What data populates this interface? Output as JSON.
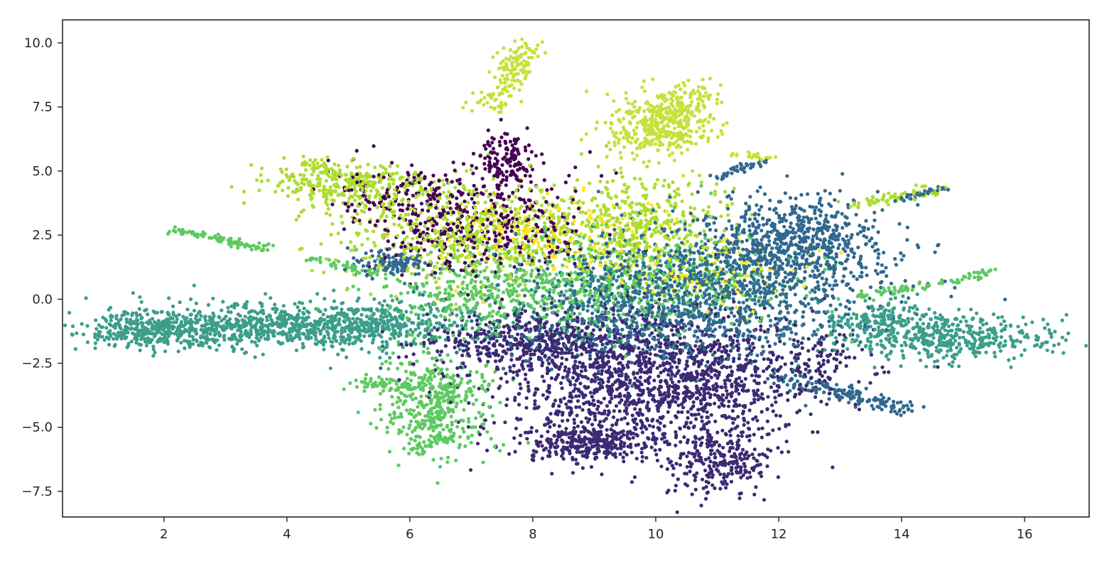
{
  "chart_data": {
    "type": "scatter",
    "title": "",
    "xlabel": "",
    "ylabel": "",
    "xlim": [
      0.35,
      17.05
    ],
    "ylim": [
      -8.5,
      10.9
    ],
    "xticks": [
      {
        "value": 2,
        "label": "2"
      },
      {
        "value": 4,
        "label": "4"
      },
      {
        "value": 6,
        "label": "6"
      },
      {
        "value": 8,
        "label": "8"
      },
      {
        "value": 10,
        "label": "10"
      },
      {
        "value": 12,
        "label": "12"
      },
      {
        "value": 14,
        "label": "14"
      },
      {
        "value": 16,
        "label": "16"
      }
    ],
    "yticks": [
      {
        "value": 10.0,
        "label": "10.0"
      },
      {
        "value": 7.5,
        "label": "7.5"
      },
      {
        "value": 5.0,
        "label": "5.0"
      },
      {
        "value": 2.5,
        "label": "2.5"
      },
      {
        "value": 0.0,
        "label": "0.0"
      },
      {
        "value": -2.5,
        "label": "−2.5"
      },
      {
        "value": -5.0,
        "label": "−5.0"
      },
      {
        "value": -7.5,
        "label": "−7.5"
      }
    ],
    "grid": false,
    "legend": "none",
    "colormap": "viridis",
    "colors": {
      "c0": "#440154",
      "c1": "#3b2a73",
      "c2": "#31688e",
      "c3": "#2a7b8e",
      "c4": "#3b9e8a",
      "c5": "#5ec962",
      "c6": "#aedc30",
      "c7": "#c8e03a",
      "c8": "#fde725"
    },
    "clusters": [
      {
        "color": "c4",
        "cx": 3.3,
        "cy": -1.1,
        "sx": 1.5,
        "sy": 0.45,
        "n": 900
      },
      {
        "color": "c4",
        "cx": 5.5,
        "cy": -1.0,
        "sx": 0.8,
        "sy": 0.45,
        "n": 300
      },
      {
        "color": "c4",
        "cx": 1.7,
        "cy": -1.3,
        "sx": 0.4,
        "sy": 0.25,
        "n": 150
      },
      {
        "color": "c4",
        "cx": 14.8,
        "cy": -1.5,
        "sx": 0.9,
        "sy": 0.45,
        "n": 450
      },
      {
        "color": "c4",
        "cx": 13.7,
        "cy": -0.9,
        "sx": 0.45,
        "sy": 0.4,
        "n": 150
      },
      {
        "color": "c5",
        "cx": 6.4,
        "cy": -4.0,
        "sx": 0.45,
        "sy": 1.0,
        "n": 450
      },
      {
        "color": "c5",
        "cx": 5.6,
        "cy": -3.3,
        "sx": 0.25,
        "sy": 0.15,
        "n": 60
      },
      {
        "color": "c1",
        "cx": 10.1,
        "cy": -3.2,
        "sx": 1.35,
        "sy": 1.3,
        "n": 1500
      },
      {
        "color": "c1",
        "cx": 8.9,
        "cy": -5.6,
        "sx": 0.5,
        "sy": 0.35,
        "n": 300
      },
      {
        "color": "c1",
        "cx": 11.0,
        "cy": -6.3,
        "sx": 0.4,
        "sy": 0.7,
        "n": 250
      },
      {
        "color": "c1",
        "cx": 8.0,
        "cy": -1.6,
        "sx": 0.9,
        "sy": 0.55,
        "n": 450
      },
      {
        "color": "c2",
        "cx": 11.4,
        "cy": 1.3,
        "sx": 1.25,
        "sy": 1.2,
        "n": 800
      },
      {
        "color": "c2",
        "cx": 12.4,
        "cy": 2.4,
        "sx": 0.55,
        "sy": 0.8,
        "n": 350
      },
      {
        "color": "c2",
        "cx": 9.9,
        "cy": -1.0,
        "sx": 1.4,
        "sy": 0.9,
        "n": 500
      },
      {
        "color": "c2",
        "cx": 5.8,
        "cy": 1.4,
        "sx": 0.35,
        "sy": 0.25,
        "n": 120
      },
      {
        "color": "c3",
        "cx": 10.4,
        "cy": 0.4,
        "sx": 1.3,
        "sy": 1.0,
        "n": 500
      },
      {
        "color": "c5",
        "cx": 9.2,
        "cy": 0.6,
        "sx": 1.4,
        "sy": 1.0,
        "n": 600
      },
      {
        "color": "c5",
        "cx": 7.0,
        "cy": 0.2,
        "sx": 0.8,
        "sy": 0.7,
        "n": 250
      },
      {
        "color": "c6",
        "cx": 7.1,
        "cy": 2.6,
        "sx": 1.2,
        "sy": 1.0,
        "n": 650
      },
      {
        "color": "c6",
        "cx": 5.0,
        "cy": 4.5,
        "sx": 0.7,
        "sy": 0.45,
        "n": 300
      },
      {
        "color": "c6",
        "cx": 9.8,
        "cy": 3.0,
        "sx": 0.7,
        "sy": 1.0,
        "n": 400
      },
      {
        "color": "c0",
        "cx": 7.2,
        "cy": 3.0,
        "sx": 0.9,
        "sy": 1.1,
        "n": 420
      },
      {
        "color": "c0",
        "cx": 7.6,
        "cy": 5.4,
        "sx": 0.2,
        "sy": 0.55,
        "n": 130
      },
      {
        "color": "c0",
        "cx": 5.8,
        "cy": 4.0,
        "sx": 0.6,
        "sy": 0.6,
        "n": 120
      },
      {
        "color": "c7",
        "cx": 10.1,
        "cy": 6.8,
        "sx": 0.45,
        "sy": 0.6,
        "n": 300
      },
      {
        "color": "c8",
        "cx": 8.3,
        "cy": 2.4,
        "sx": 0.9,
        "sy": 0.8,
        "n": 180
      },
      {
        "color": "c8",
        "cx": 11.0,
        "cy": 0.9,
        "sx": 0.9,
        "sy": 0.7,
        "n": 120
      }
    ],
    "strands": [
      {
        "color": "c5",
        "from": [
          2.1,
          2.75
        ],
        "to": [
          3.7,
          1.95
        ],
        "w": 0.08,
        "n": 90
      },
      {
        "color": "c5",
        "from": [
          4.4,
          1.6
        ],
        "to": [
          5.6,
          0.9
        ],
        "w": 0.08,
        "n": 40
      },
      {
        "color": "c6",
        "from": [
          13.2,
          3.7
        ],
        "to": [
          14.6,
          4.3
        ],
        "w": 0.1,
        "n": 70
      },
      {
        "color": "c2",
        "from": [
          13.9,
          3.9
        ],
        "to": [
          14.7,
          4.35
        ],
        "w": 0.07,
        "n": 35
      },
      {
        "color": "c5",
        "from": [
          13.3,
          0.1
        ],
        "to": [
          15.5,
          1.05
        ],
        "w": 0.08,
        "n": 80
      },
      {
        "color": "c2",
        "from": [
          12.0,
          -3.0
        ],
        "to": [
          14.2,
          -4.4
        ],
        "w": 0.15,
        "n": 160
      },
      {
        "color": "c7",
        "from": [
          7.3,
          7.5
        ],
        "to": [
          7.9,
          10.0
        ],
        "w": 0.17,
        "n": 150
      },
      {
        "color": "c7",
        "from": [
          9.7,
          6.2
        ],
        "to": [
          10.7,
          8.2
        ],
        "w": 0.25,
        "n": 160
      },
      {
        "color": "c2",
        "from": [
          11.0,
          4.8
        ],
        "to": [
          11.8,
          5.4
        ],
        "w": 0.08,
        "n": 40
      },
      {
        "color": "c7",
        "from": [
          11.2,
          5.7
        ],
        "to": [
          11.9,
          5.5
        ],
        "w": 0.06,
        "n": 20
      },
      {
        "color": "c6",
        "from": [
          4.2,
          5.4
        ],
        "to": [
          5.3,
          4.4
        ],
        "w": 0.1,
        "n": 50
      },
      {
        "color": "c5",
        "from": [
          6.7,
          -5.4
        ],
        "to": [
          6.0,
          -5.9
        ],
        "w": 0.07,
        "n": 30
      },
      {
        "color": "c1",
        "from": [
          12.5,
          -3.1
        ],
        "to": [
          12.9,
          -1.4
        ],
        "w": 0.25,
        "n": 60
      }
    ]
  }
}
